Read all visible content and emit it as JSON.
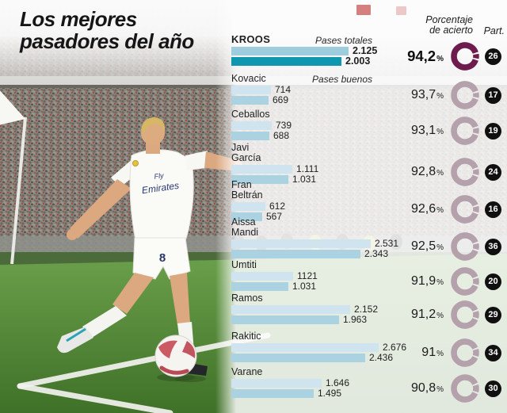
{
  "title": {
    "line1": "Los mejores",
    "line2": "pasadores del año"
  },
  "headers": {
    "porcentaje_line1": "Porcentaje",
    "porcentaje_line2": "de acierto",
    "part": "Part."
  },
  "legend": {
    "totales": "Pases totales",
    "buenos": "Pases buenos"
  },
  "photo": {
    "jersey_sponsor_line1": "Fly",
    "jersey_sponsor_line2": "Emirates",
    "jersey_number": "8"
  },
  "colors": {
    "bar_total": "#cfe4ee",
    "bar_good": "#abd2e1",
    "bar_total_highlight": "#9ecddd",
    "bar_good_highlight": "#0e97ae",
    "donut": "#b4a1ab",
    "donut_highlight": "#6e1b4d",
    "badge_bg": "#101010",
    "badge_text": "#ffffff",
    "text": "#1f1f1f"
  },
  "chart_data": {
    "type": "bar",
    "orientation": "horizontal",
    "title": "Los mejores pasadores del año",
    "series_labels": [
      "Pases totales",
      "Pases buenos"
    ],
    "value_axis_label": "",
    "max_value": 2676,
    "grid": false,
    "players": [
      {
        "name": "KROOS",
        "name_lines": [
          "KROOS"
        ],
        "highlight": true,
        "pases_totales": 2125,
        "pases_totales_display": "2.125",
        "pases_buenos": 2003,
        "pases_buenos_display": "2.003",
        "porcentaje": 94.2,
        "porcentaje_display": "94,2",
        "part": 26
      },
      {
        "name": "Kovacic",
        "name_lines": [
          "Kovacic"
        ],
        "highlight": false,
        "pases_totales": 714,
        "pases_totales_display": "714",
        "pases_buenos": 669,
        "pases_buenos_display": "669",
        "porcentaje": 93.7,
        "porcentaje_display": "93,7",
        "part": 17
      },
      {
        "name": "Ceballos",
        "name_lines": [
          "Ceballos"
        ],
        "highlight": false,
        "pases_totales": 739,
        "pases_totales_display": "739",
        "pases_buenos": 688,
        "pases_buenos_display": "688",
        "porcentaje": 93.1,
        "porcentaje_display": "93,1",
        "part": 19
      },
      {
        "name": "Javi García",
        "name_lines": [
          "Javi",
          "García"
        ],
        "highlight": false,
        "pases_totales": 1111,
        "pases_totales_display": "1.111",
        "pases_buenos": 1031,
        "pases_buenos_display": "1.031",
        "porcentaje": 92.8,
        "porcentaje_display": "92,8",
        "part": 24
      },
      {
        "name": "Fran Beltrán",
        "name_lines": [
          "Fran",
          "Beltrán"
        ],
        "highlight": false,
        "pases_totales": 612,
        "pases_totales_display": "612",
        "pases_buenos": 567,
        "pases_buenos_display": "567",
        "porcentaje": 92.6,
        "porcentaje_display": "92,6",
        "part": 16
      },
      {
        "name": "Aissa Mandi",
        "name_lines": [
          "Aissa",
          "Mandi"
        ],
        "highlight": false,
        "pases_totales": 2531,
        "pases_totales_display": "2.531",
        "pases_buenos": 2343,
        "pases_buenos_display": "2.343",
        "porcentaje": 92.5,
        "porcentaje_display": "92,5",
        "part": 36
      },
      {
        "name": "Umtiti",
        "name_lines": [
          "Umtiti"
        ],
        "highlight": false,
        "pases_totales": 1121,
        "pases_totales_display": "1121",
        "pases_buenos": 1031,
        "pases_buenos_display": "1.031",
        "porcentaje": 91.9,
        "porcentaje_display": "91,9",
        "part": 20
      },
      {
        "name": "Ramos",
        "name_lines": [
          "Ramos"
        ],
        "highlight": false,
        "pases_totales": 2152,
        "pases_totales_display": "2.152",
        "pases_buenos": 1963,
        "pases_buenos_display": "1.963",
        "porcentaje": 91.2,
        "porcentaje_display": "91,2",
        "part": 29
      },
      {
        "name": "Rakitic",
        "name_lines": [
          "Rakitic"
        ],
        "highlight": false,
        "pases_totales": 2676,
        "pases_totales_display": "2.676",
        "pases_buenos": 2436,
        "pases_buenos_display": "2.436",
        "porcentaje": 91.0,
        "porcentaje_display": "91",
        "part": 34
      },
      {
        "name": "Varane",
        "name_lines": [
          "Varane"
        ],
        "highlight": false,
        "pases_totales": 1646,
        "pases_totales_display": "1.646",
        "pases_buenos": 1495,
        "pases_buenos_display": "1.495",
        "porcentaje": 90.8,
        "porcentaje_display": "90,8",
        "part": 30
      }
    ]
  }
}
